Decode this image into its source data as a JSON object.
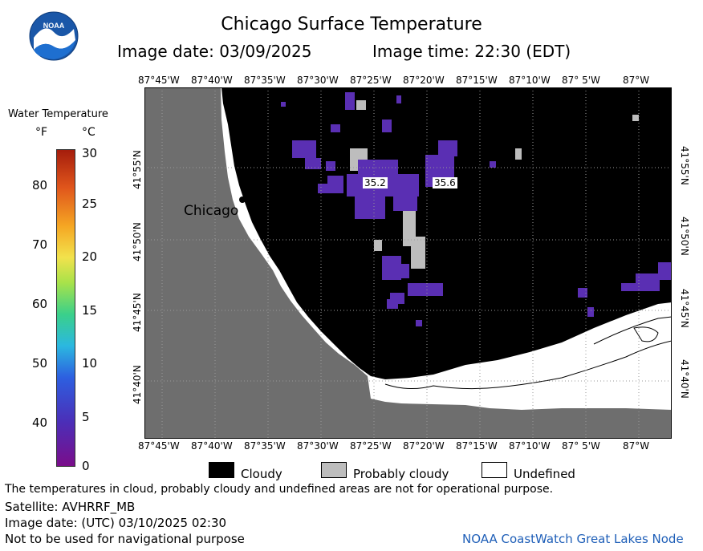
{
  "title": "Chicago Surface Temperature",
  "image_date_label": "Image date: 03/09/2025",
  "image_time_label": "Image time: 22:30 (EDT)",
  "logo_text": "NOAA",
  "lon_ticks": [
    "87°45'W",
    "87°40'W",
    "87°35'W",
    "87°30'W",
    "87°25'W",
    "87°20'W",
    "87°15'W",
    "87°10'W",
    "87° 5'W",
    "87°W"
  ],
  "lat_ticks": [
    "41°55'N",
    "41°50'N",
    "41°45'N",
    "41°40'N"
  ],
  "city_label": "Chicago",
  "temp_labels": [
    "35.2",
    "35.6"
  ],
  "scale": {
    "title": "Water Temperature",
    "unit_f": "°F",
    "unit_c": "°C",
    "f_ticks": [
      "80",
      "70",
      "60",
      "50",
      "40"
    ],
    "c_ticks": [
      "30",
      "25",
      "20",
      "15",
      "10",
      "5",
      "0"
    ]
  },
  "legend": {
    "cloudy": "Cloudy",
    "probably_cloudy": "Probably cloudy",
    "undefined": "Undefined"
  },
  "footer": {
    "disclaimer": "The temperatures in cloud, probably cloudy and undefined areas are not for operational purpose.",
    "satellite": "Satellite: AVHRRF_MB",
    "utc_date": "Image date: (UTC) 03/10/2025  02:30",
    "navigation": "Not to be used for navigational purpose",
    "credit": "NOAA CoastWatch Great Lakes Node"
  },
  "colors": {
    "land": "#6e6e6e",
    "cloud": "#000000",
    "probably_cloud": "#bdbdbd",
    "undefined": "#ffffff",
    "cold_water": "#5a2fb3",
    "credit": "#1f5fb8"
  }
}
